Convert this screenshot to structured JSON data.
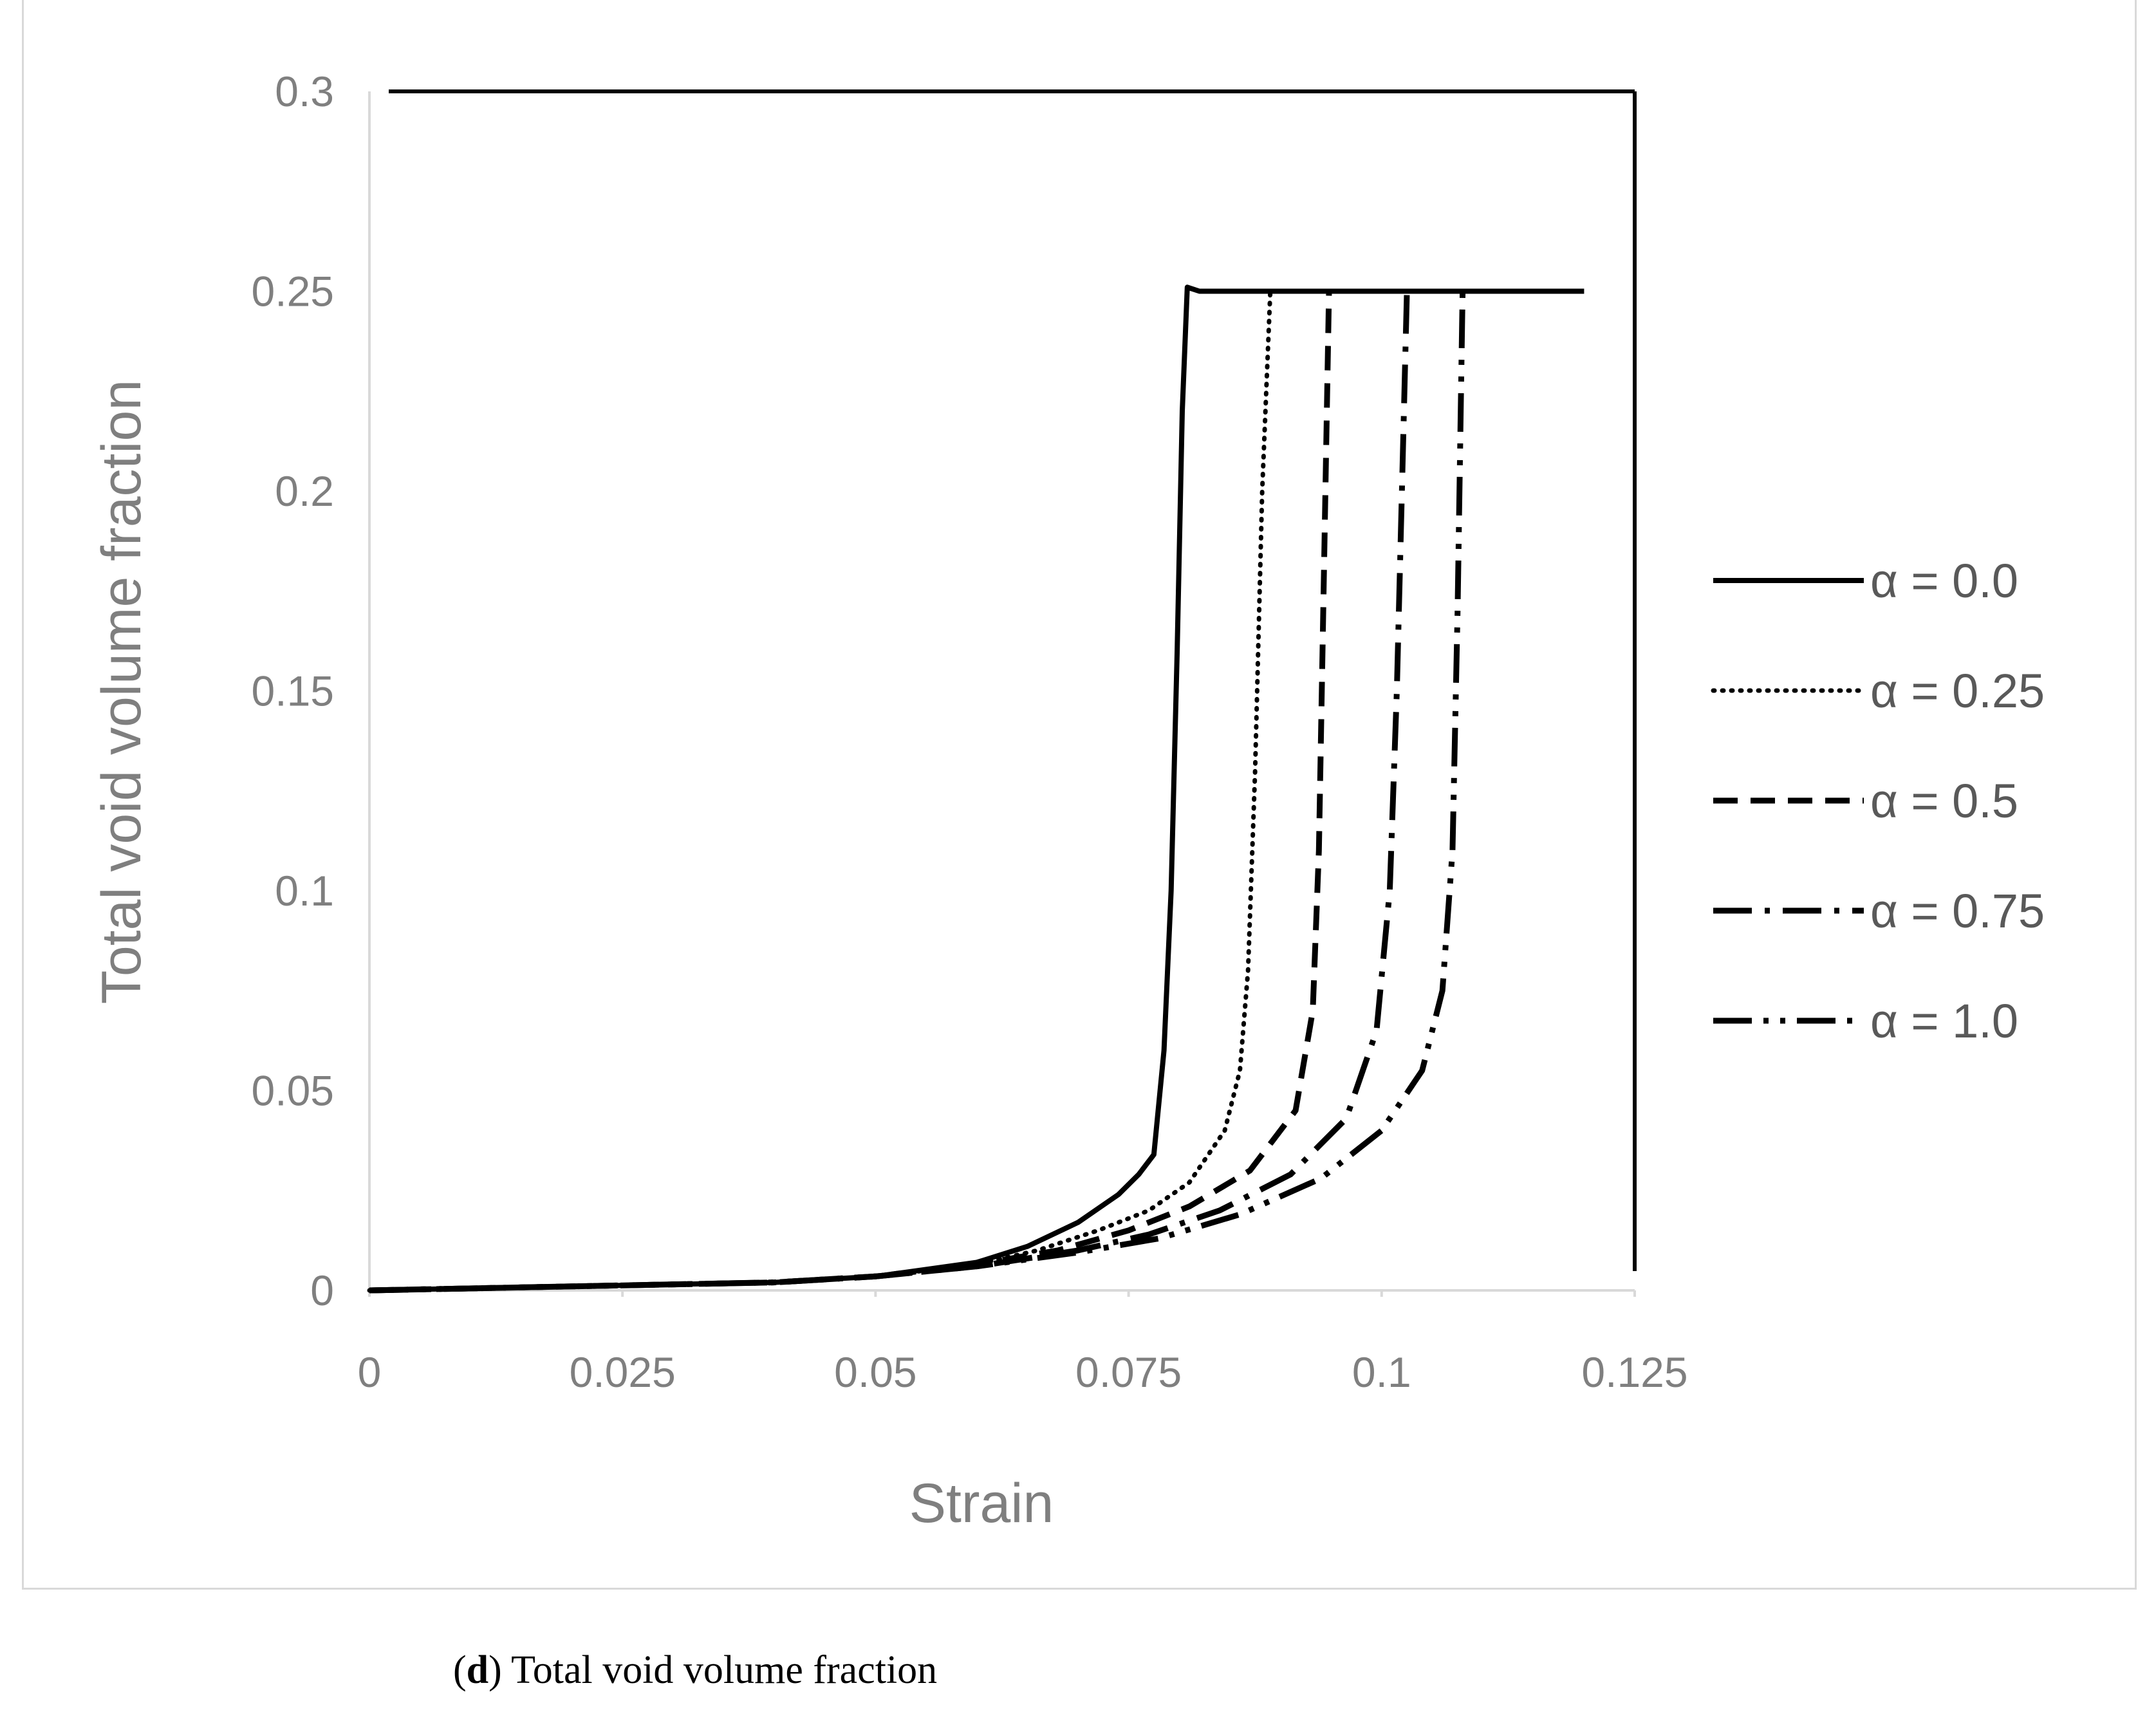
{
  "chart_data": {
    "type": "line",
    "xlabel": "Strain",
    "ylabel": "Total void volume fraction",
    "xlim": [
      0,
      0.125
    ],
    "ylim": [
      0,
      0.3
    ],
    "x_ticks": [
      "0",
      "0.025",
      "0.05",
      "0.075",
      "0.1",
      "0.125"
    ],
    "y_ticks": [
      "0",
      "0.05",
      "0.1",
      "0.15",
      "0.2",
      "0.25",
      "0.3"
    ],
    "grid": false,
    "legend_position": "right",
    "series": [
      {
        "name": "α = 0.0",
        "style": "solid",
        "color": "#000000",
        "x": [
          0,
          0.02,
          0.04,
          0.05,
          0.06,
          0.065,
          0.07,
          0.074,
          0.076,
          0.0775,
          0.0785,
          0.0792,
          0.0798,
          0.0803,
          0.0808,
          0.082,
          0.09,
          0.1,
          0.11,
          0.12
        ],
        "y": [
          0,
          0.001,
          0.002,
          0.0035,
          0.007,
          0.011,
          0.017,
          0.024,
          0.029,
          0.034,
          0.06,
          0.1,
          0.16,
          0.22,
          0.251,
          0.25,
          0.25,
          0.25,
          0.25,
          0.25
        ]
      },
      {
        "name": "α = 0.25",
        "style": "dotted",
        "color": "#000000",
        "x": [
          0,
          0.02,
          0.04,
          0.05,
          0.06,
          0.066,
          0.072,
          0.077,
          0.081,
          0.0845,
          0.086,
          0.0868,
          0.0875,
          0.0882,
          0.089
        ],
        "y": [
          0,
          0.001,
          0.002,
          0.0035,
          0.0065,
          0.01,
          0.015,
          0.02,
          0.027,
          0.04,
          0.055,
          0.08,
          0.13,
          0.2,
          0.25
        ]
      },
      {
        "name": "α = 0.5",
        "style": "dashed",
        "color": "#000000",
        "x": [
          0,
          0.02,
          0.04,
          0.05,
          0.06,
          0.068,
          0.075,
          0.081,
          0.087,
          0.0915,
          0.0932,
          0.0938,
          0.0943,
          0.0948
        ],
        "y": [
          0,
          0.001,
          0.002,
          0.0035,
          0.0065,
          0.01,
          0.015,
          0.021,
          0.03,
          0.045,
          0.07,
          0.11,
          0.18,
          0.25
        ]
      },
      {
        "name": "α = 0.75",
        "style": "long-dash-dot",
        "color": "#000000",
        "x": [
          0,
          0.02,
          0.04,
          0.05,
          0.06,
          0.07,
          0.077,
          0.084,
          0.091,
          0.0965,
          0.0995,
          0.1008,
          0.1015,
          0.102,
          0.1025
        ],
        "y": [
          0,
          0.001,
          0.002,
          0.0035,
          0.006,
          0.01,
          0.014,
          0.02,
          0.029,
          0.043,
          0.065,
          0.1,
          0.15,
          0.2,
          0.25
        ]
      },
      {
        "name": "α = 1.0",
        "style": "long-dash-dot-dot",
        "color": "#000000",
        "x": [
          0,
          0.02,
          0.04,
          0.05,
          0.06,
          0.07,
          0.078,
          0.086,
          0.094,
          0.1,
          0.104,
          0.106,
          0.107,
          0.1075,
          0.108
        ],
        "y": [
          0,
          0.001,
          0.002,
          0.0035,
          0.006,
          0.0095,
          0.013,
          0.019,
          0.028,
          0.04,
          0.055,
          0.075,
          0.11,
          0.17,
          0.25
        ]
      }
    ]
  },
  "caption": {
    "label": "d",
    "text": " Total void volume fraction"
  }
}
